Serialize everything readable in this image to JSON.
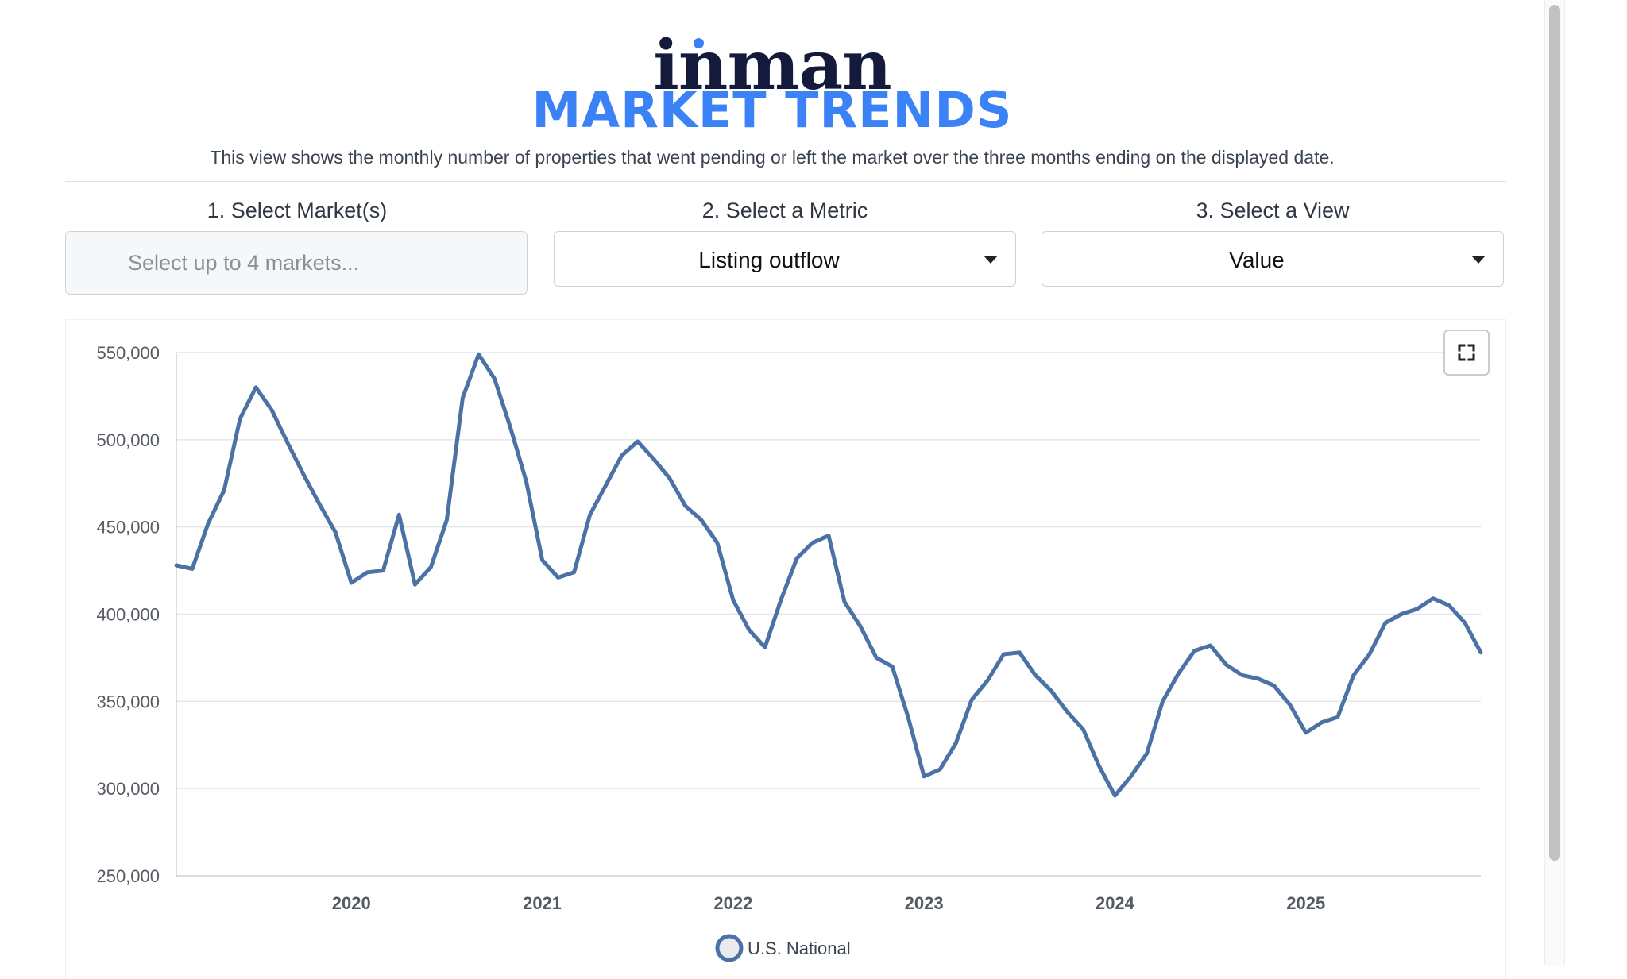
{
  "header": {
    "brand": "inman",
    "title": "MARKET TRENDS",
    "description": "This view shows the monthly number of properties that went pending or left the market over the three months ending on the displayed date."
  },
  "controls": {
    "markets": {
      "label": "1. Select Market(s)",
      "placeholder": "Select up to 4 markets..."
    },
    "metric": {
      "label": "2. Select a Metric",
      "value": "Listing outflow"
    },
    "view": {
      "label": "3. Select a View",
      "value": "Value"
    }
  },
  "icons": {
    "expand": "fullscreen-expand-icon",
    "dropdown": "caret-down-icon"
  },
  "chart_data": {
    "type": "line",
    "title": "",
    "xlabel": "",
    "ylabel": "",
    "ylim": [
      250000,
      550000
    ],
    "yticks": [
      250000,
      300000,
      350000,
      400000,
      450000,
      500000,
      550000
    ],
    "ytick_labels": [
      "250,000",
      "300,000",
      "350,000",
      "400,000",
      "450,000",
      "500,000",
      "550,000"
    ],
    "xticks": [
      "2020",
      "2021",
      "2022",
      "2023",
      "2024",
      "2025"
    ],
    "xlim": [
      "2019-02",
      "2025-12"
    ],
    "grid": true,
    "legend_position": "bottom-center",
    "series": [
      {
        "name": "U.S. National",
        "color": "#4a72a5",
        "x": [
          "2019-02",
          "2019-03",
          "2019-04",
          "2019-05",
          "2019-06",
          "2019-07",
          "2019-08",
          "2019-09",
          "2019-10",
          "2019-11",
          "2019-12",
          "2020-01",
          "2020-02",
          "2020-03",
          "2020-04",
          "2020-05",
          "2020-06",
          "2020-07",
          "2020-08",
          "2020-09",
          "2020-10",
          "2020-11",
          "2020-12",
          "2021-01",
          "2021-02",
          "2021-03",
          "2021-04",
          "2021-05",
          "2021-06",
          "2021-07",
          "2021-08",
          "2021-09",
          "2021-10",
          "2021-11",
          "2021-12",
          "2022-01",
          "2022-02",
          "2022-03",
          "2022-04",
          "2022-05",
          "2022-06",
          "2022-07",
          "2022-08",
          "2022-09",
          "2022-10",
          "2022-11",
          "2022-12",
          "2023-01",
          "2023-02",
          "2023-03",
          "2023-04",
          "2023-05",
          "2023-06",
          "2023-07",
          "2023-08",
          "2023-09",
          "2023-10",
          "2023-11",
          "2023-12",
          "2024-01",
          "2024-02",
          "2024-03",
          "2024-04",
          "2024-05",
          "2024-06",
          "2024-07",
          "2024-08",
          "2024-09",
          "2024-10",
          "2024-11",
          "2024-12",
          "2025-01",
          "2025-02",
          "2025-03",
          "2025-04",
          "2025-05",
          "2025-06",
          "2025-07",
          "2025-08",
          "2025-09",
          "2025-10",
          "2025-11",
          "2025-12"
        ],
        "values": [
          428000,
          426000,
          452000,
          471000,
          512000,
          530000,
          517000,
          498000,
          480000,
          463000,
          447000,
          418000,
          424000,
          425000,
          457000,
          417000,
          427000,
          454000,
          524000,
          549000,
          535000,
          507000,
          476000,
          431000,
          421000,
          424000,
          457000,
          474000,
          491000,
          499000,
          489000,
          478000,
          462000,
          454000,
          441000,
          408000,
          391000,
          381000,
          408000,
          432000,
          441000,
          445000,
          407000,
          393000,
          375000,
          370000,
          341000,
          307000,
          311000,
          326000,
          351000,
          362000,
          377000,
          378000,
          365000,
          356000,
          344000,
          334000,
          313000,
          296000,
          307000,
          320000,
          350000,
          366000,
          379000,
          382000,
          371000,
          365000,
          363000,
          359000,
          348000,
          332000,
          338000,
          341000,
          365000,
          377000,
          395000,
          400000,
          403000,
          409000,
          405000,
          395000,
          378000
        ]
      }
    ]
  }
}
